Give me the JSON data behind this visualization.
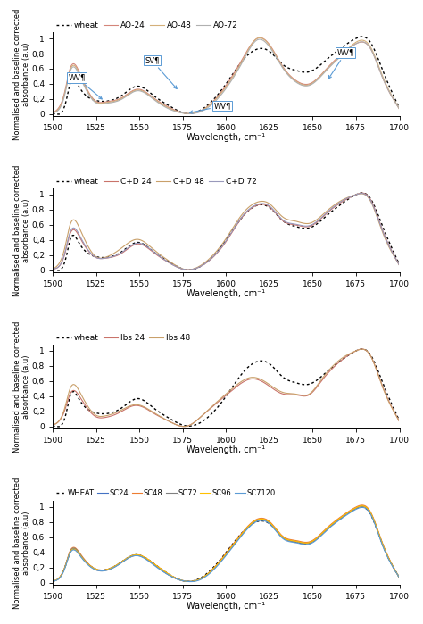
{
  "xlim": [
    1500,
    1700
  ],
  "ylim": [
    0,
    1.05
  ],
  "xlabel": "Wavelength, cm⁻¹",
  "ylabel": "Normalised and baseline corrected\nabsorbance (a.u)",
  "yticks": [
    0,
    0.2,
    0.4,
    0.6,
    0.8,
    1
  ],
  "ytick_labels": [
    "0",
    "0,2",
    "0,4",
    "0,6",
    "0,8",
    "1"
  ],
  "xticks": [
    1500,
    1525,
    1550,
    1575,
    1600,
    1625,
    1650,
    1675,
    1700
  ],
  "panel1_legend": [
    "wheat",
    "AO-24",
    "AO-48",
    "AO-72"
  ],
  "panel1_colors": [
    "black",
    "#d4857a",
    "#d4b07a",
    "#b0b0b0"
  ],
  "panel2_legend": [
    "wheat",
    "C+D 24",
    "C+D 48",
    "C+D 72"
  ],
  "panel2_colors": [
    "black",
    "#c9736a",
    "#c9a06a",
    "#9999bb"
  ],
  "panel3_legend": [
    "wheat",
    "lbs 24",
    "lbs 48"
  ],
  "panel3_colors": [
    "black",
    "#c9736a",
    "#c9a06a"
  ],
  "panel4_legend": [
    "WHEAT",
    "SC24",
    "SC48",
    "SC72",
    "SC96",
    "SC7120"
  ],
  "panel4_colors": [
    "black",
    "#4472c4",
    "#ed7d31",
    "#808080",
    "#ffc000",
    "#5b9bd5"
  ]
}
